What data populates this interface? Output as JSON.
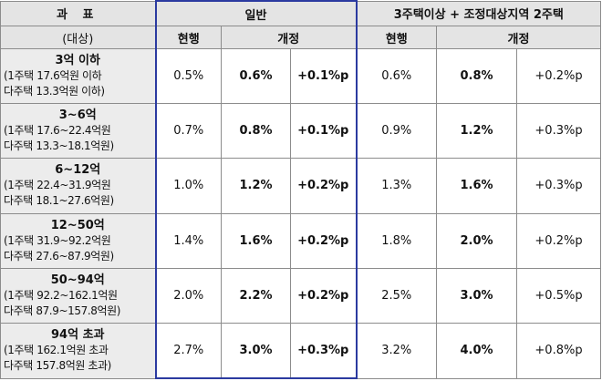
{
  "header": {
    "col_title": "과 표",
    "col_subtitle": "(대상)",
    "group_general": "일반",
    "group_multi": "3주택이상 + 조정대상지역 2주택",
    "current": "현행",
    "revised": "개정"
  },
  "rows": [
    {
      "band": "3억 이하",
      "line1": "(1주택 17.6억원 이하",
      "line2": "다주택 13.3억원 이하)",
      "gen_current": "0.5%",
      "gen_revised": "0.6%",
      "gen_change": "+0.1%p",
      "multi_current": "0.6%",
      "multi_revised": "0.8%",
      "multi_change": "+0.2%p"
    },
    {
      "band": "3~6억",
      "line1": "(1주택 17.6~22.4억원",
      "line2": "다주택 13.3~18.1억원)",
      "gen_current": "0.7%",
      "gen_revised": "0.8%",
      "gen_change": "+0.1%p",
      "multi_current": "0.9%",
      "multi_revised": "1.2%",
      "multi_change": "+0.3%p"
    },
    {
      "band": "6~12억",
      "line1": "(1주택 22.4~31.9억원",
      "line2": "다주택 18.1~27.6억원)",
      "gen_current": "1.0%",
      "gen_revised": "1.2%",
      "gen_change": "+0.2%p",
      "multi_current": "1.3%",
      "multi_revised": "1.6%",
      "multi_change": "+0.3%p"
    },
    {
      "band": "12~50억",
      "line1": "(1주택 31.9~92.2억원",
      "line2": "다주택 27.6~87.9억원)",
      "gen_current": "1.4%",
      "gen_revised": "1.6%",
      "gen_change": "+0.2%p",
      "multi_current": "1.8%",
      "multi_revised": "2.0%",
      "multi_change": "+0.2%p"
    },
    {
      "band": "50~94억",
      "line1": "(1주택 92.2~162.1억원",
      "line2": "다주택 87.9~157.8억원)",
      "gen_current": "2.0%",
      "gen_revised": "2.2%",
      "gen_change": "+0.2%p",
      "multi_current": "2.5%",
      "multi_revised": "3.0%",
      "multi_change": "+0.5%p"
    },
    {
      "band": "94억 초과",
      "line1": "(1주택 162.1억원 초과",
      "line2": "다주택 157.8억원 초과)",
      "gen_current": "2.7%",
      "gen_revised": "3.0%",
      "gen_change": "+0.3%p",
      "multi_current": "3.2%",
      "multi_revised": "4.0%",
      "multi_change": "+0.8%p"
    }
  ]
}
